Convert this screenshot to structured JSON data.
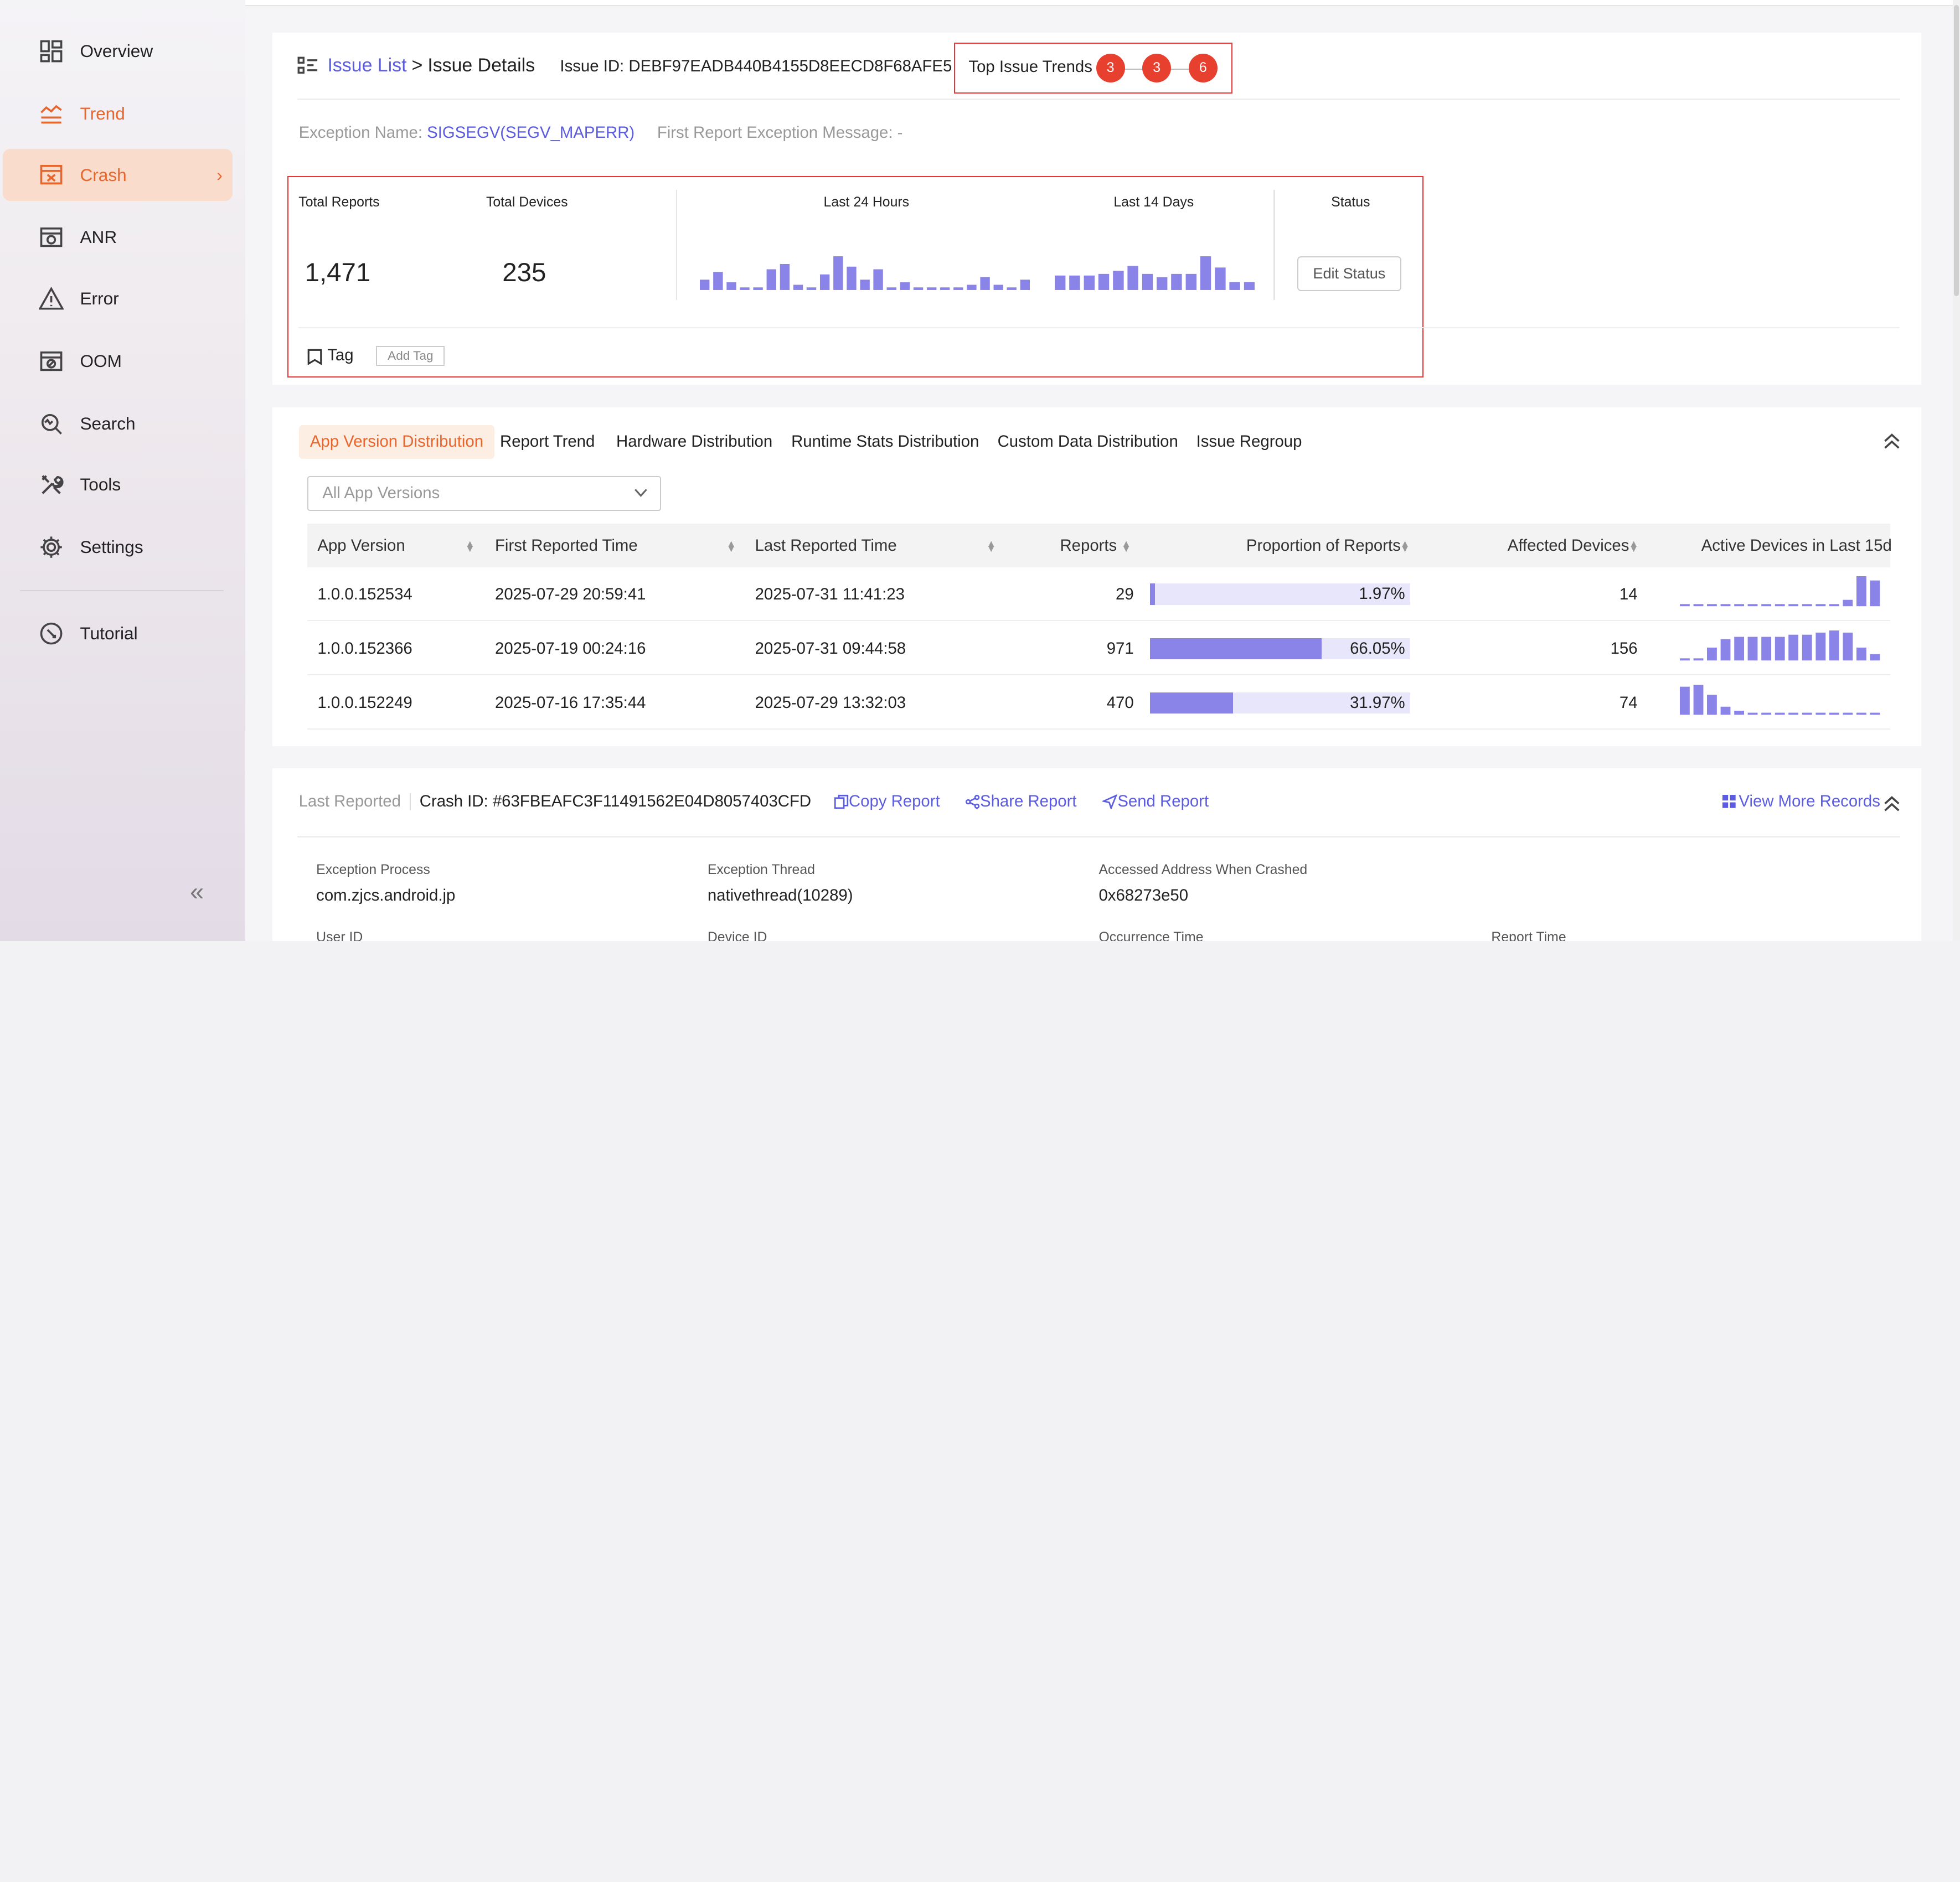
{
  "sidebar": {
    "items": [
      {
        "label": "Overview",
        "icon": "dashboard-icon"
      },
      {
        "label": "Trend",
        "icon": "trend-icon"
      },
      {
        "label": "Crash",
        "icon": "crash-icon"
      },
      {
        "label": "ANR",
        "icon": "anr-icon"
      },
      {
        "label": "Error",
        "icon": "warning-icon"
      },
      {
        "label": "OOM",
        "icon": "oom-icon"
      },
      {
        "label": "Search",
        "icon": "search-icon"
      },
      {
        "label": "Tools",
        "icon": "tools-icon"
      },
      {
        "label": "Settings",
        "icon": "gear-icon"
      },
      {
        "label": "Tutorial",
        "icon": "tutorial-icon"
      }
    ],
    "chevron": "›",
    "collapse": "«"
  },
  "issue": {
    "breadcrumb_link": "Issue List",
    "breadcrumb_sep": ">",
    "breadcrumb_current": "Issue Details",
    "id_label": "Issue ID:",
    "id_value": "DEBF97EADB440B4155D8EECD8F68AFE5",
    "trends_label": "Top Issue Trends",
    "trend_dots": [
      "3",
      "3",
      "6"
    ],
    "exception_name_label": "Exception Name:",
    "exception_name_value": "SIGSEGV(SEGV_MAPERR)",
    "first_msg_label": "First Report Exception Message:",
    "first_msg_value": "-",
    "total_reports_label": "Total Reports",
    "total_reports": "1,471",
    "total_devices_label": "Total Devices",
    "total_devices": "235",
    "last24_label": "Last 24 Hours",
    "last14_label": "Last 14 Days",
    "status_label": "Status",
    "edit_status": "Edit Status",
    "tag_label": "Tag",
    "add_tag": "Add Tag",
    "last24_values": [
      4,
      7,
      3,
      1,
      1,
      8,
      10,
      2,
      1,
      6,
      13,
      9,
      4,
      8,
      1,
      3,
      1,
      1,
      1,
      1,
      2,
      5,
      2,
      1,
      4
    ],
    "last14_values": [
      9,
      9,
      9,
      10,
      12,
      15,
      10,
      8,
      10,
      10,
      21,
      14,
      5,
      5
    ]
  },
  "dist": {
    "tabs": [
      "App Version Distribution",
      "Report Trend",
      "Hardware Distribution",
      "Runtime Stats Distribution",
      "Custom Data Distribution",
      "Issue Regroup"
    ],
    "selected_tab": 0,
    "version_select": "All App Versions",
    "columns": [
      "App Version",
      "First Reported Time",
      "Last Reported Time",
      "Reports",
      "Proportion of Reports",
      "Affected Devices",
      "Active Devices in Last 15d"
    ],
    "rows": [
      {
        "version": "1.0.0.152534",
        "first": "2025-07-29 20:59:41",
        "last": "2025-07-31 11:41:23",
        "reports": "29",
        "proportion": "1.97%",
        "proportion_value": 0.0197,
        "devices": "14",
        "active": [
          1,
          1,
          1,
          1,
          1,
          1,
          1,
          1,
          1,
          1,
          1,
          1,
          3,
          14,
          12
        ]
      },
      {
        "version": "1.0.0.152366",
        "first": "2025-07-19 00:24:16",
        "last": "2025-07-31 09:44:58",
        "reports": "971",
        "proportion": "66.05%",
        "proportion_value": 0.6605,
        "devices": "156",
        "active": [
          1,
          1,
          6,
          10,
          11,
          11,
          11,
          11,
          12,
          12,
          13,
          14,
          13,
          6,
          3
        ]
      },
      {
        "version": "1.0.0.152249",
        "first": "2025-07-16 17:35:44",
        "last": "2025-07-29 13:32:03",
        "reports": "470",
        "proportion": "31.97%",
        "proportion_value": 0.3197,
        "devices": "74",
        "active": [
          14,
          15,
          10,
          4,
          2,
          1,
          1,
          1,
          1,
          1,
          1,
          1,
          1,
          1,
          1
        ]
      }
    ]
  },
  "last": {
    "label": "Last Reported",
    "crash_id": "Crash ID: #63FBEAFC3F11491562E04D8057403CFD",
    "copy": "Copy Report",
    "share": "Share Report",
    "send": "Send Report",
    "view_more": "View More Records",
    "fields": [
      {
        "label": "Exception Process",
        "value": "com.zjcs.android.jp"
      },
      {
        "label": "Exception Thread",
        "value": "nativethread(10289)"
      },
      {
        "label": "Accessed Address When Crashed",
        "value": "0x68273e50"
      }
    ],
    "more_fields": [
      "User ID",
      "Device ID",
      "Occurrence Time",
      "Report Time"
    ]
  },
  "colors": {
    "accent": "#e8652c",
    "link": "#5b5ce0",
    "bar": "#8b84e8",
    "bar_bg": "#e8e6fa",
    "alert": "#e33"
  }
}
